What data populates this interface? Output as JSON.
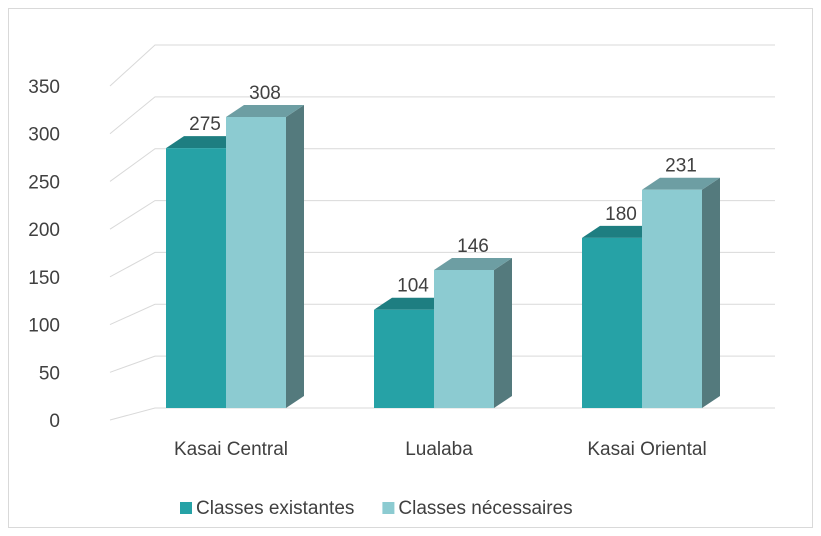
{
  "chart_data": {
    "type": "bar3d",
    "categories": [
      "Kasai Central",
      "Lualaba",
      "Kasai Oriental"
    ],
    "series": [
      {
        "name": "Classes existantes",
        "color": "#26a2a6",
        "values": [
          275,
          104,
          180
        ]
      },
      {
        "name": "Classes nécessaires",
        "color": "#8ccbd1",
        "values": [
          308,
          146,
          231
        ]
      }
    ],
    "ylim": [
      0,
      350
    ],
    "yticks": [
      0,
      50,
      100,
      150,
      200,
      250,
      300,
      350
    ],
    "grid": true,
    "legend": "bottom"
  }
}
